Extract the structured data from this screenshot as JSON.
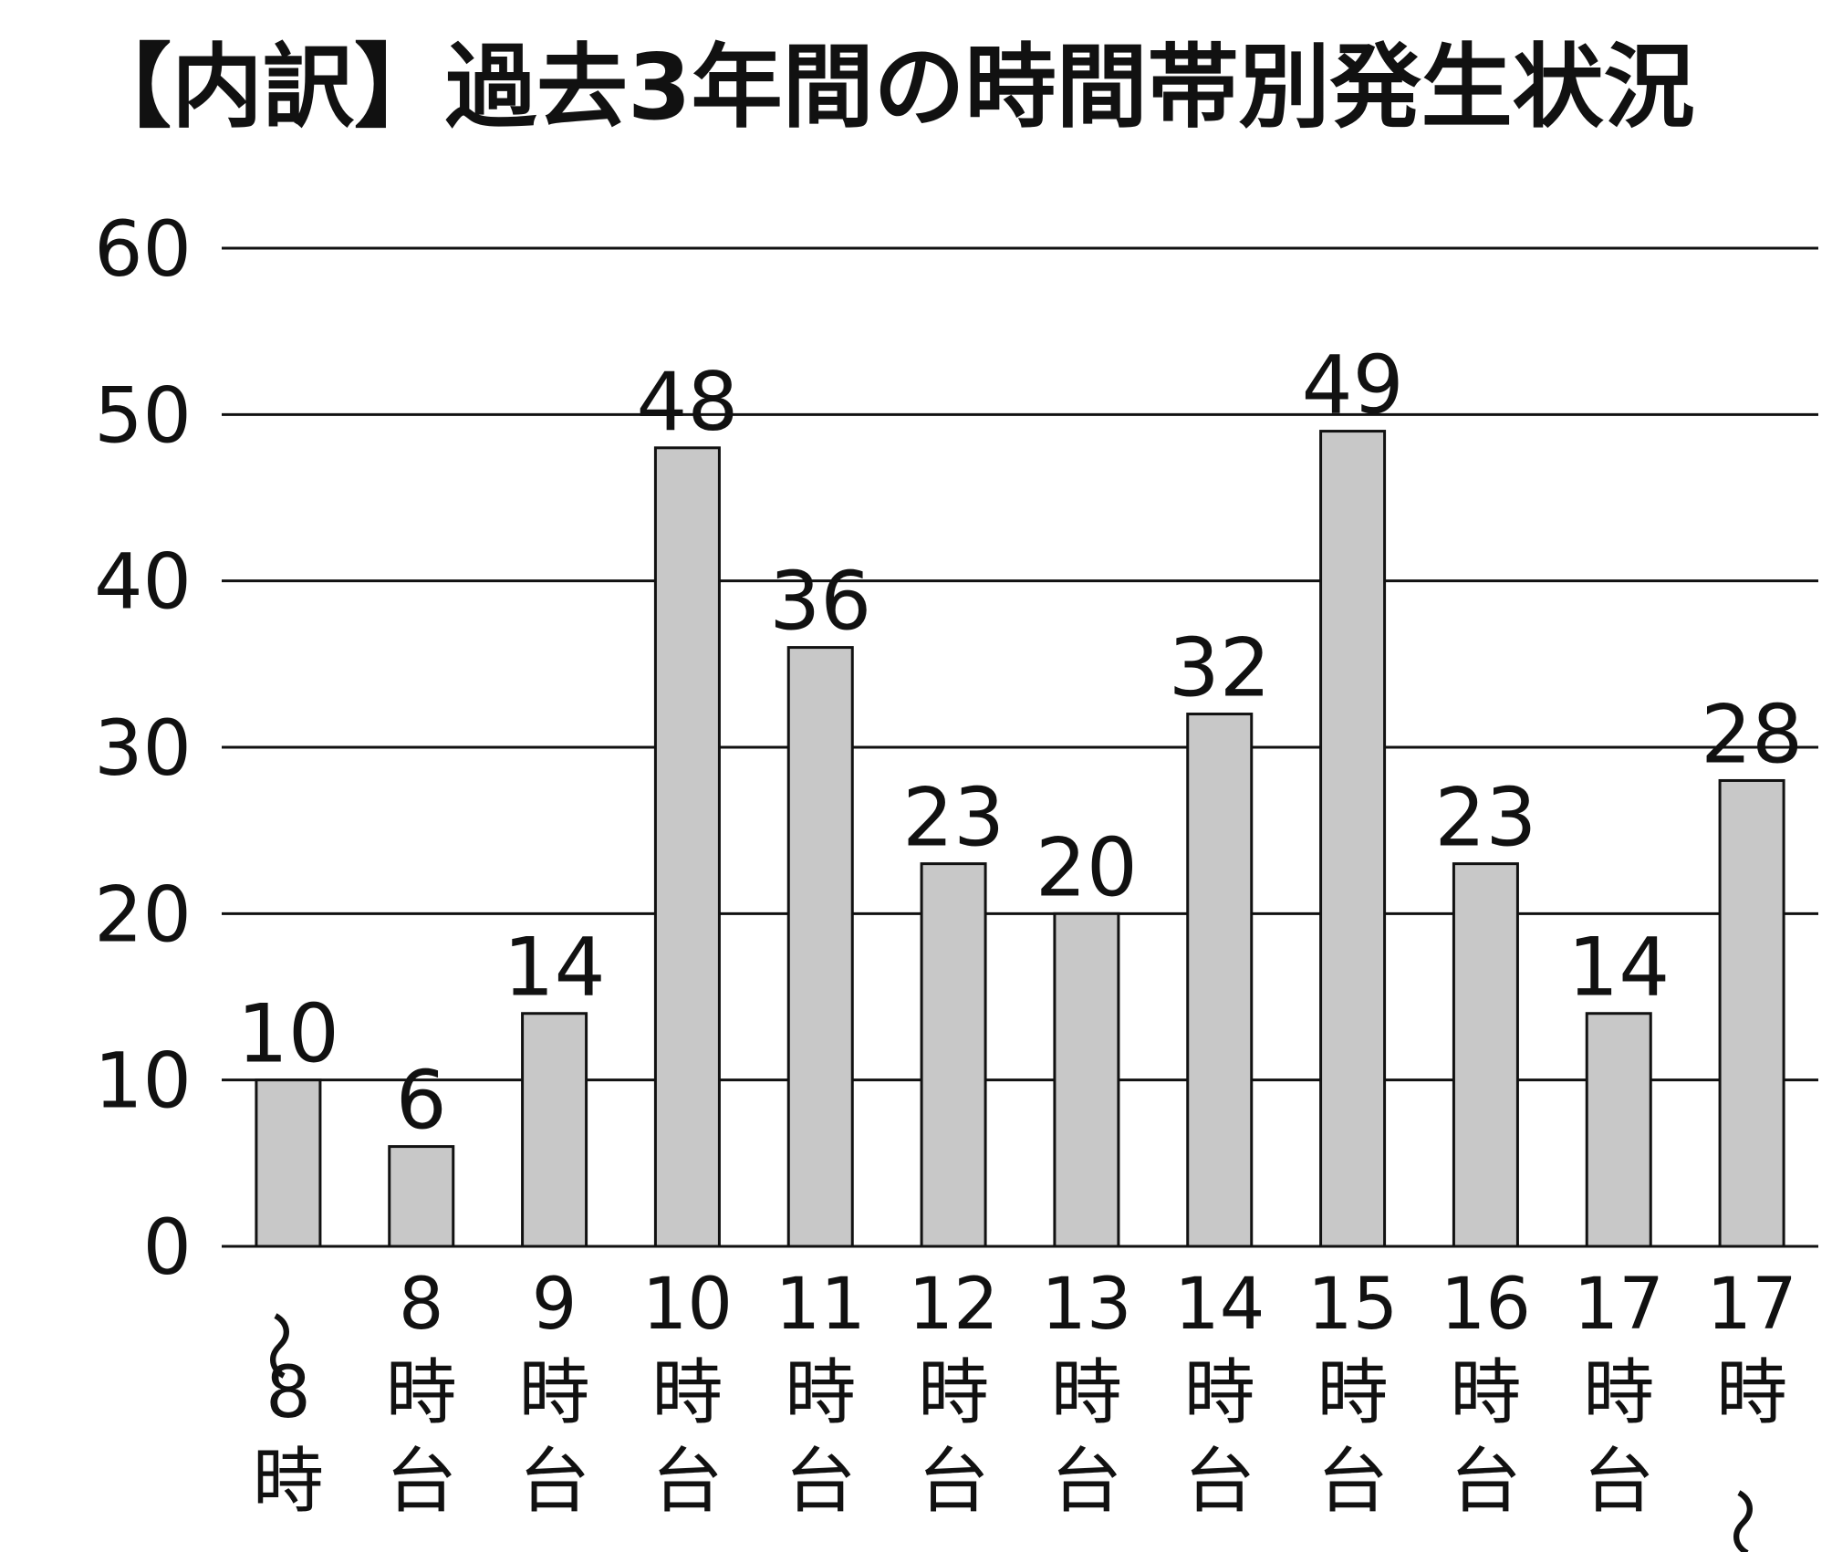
{
  "chart_data": {
    "type": "bar",
    "title": "【内訳】過去3年間の時間帯別発生状況",
    "categories": [
      "〜8時",
      "8時台",
      "9時台",
      "10時台",
      "11時台",
      "12時台",
      "13時台",
      "14時台",
      "15時台",
      "16時台",
      "17時台",
      "17時〜"
    ],
    "values": [
      10,
      6,
      14,
      48,
      36,
      23,
      20,
      32,
      49,
      23,
      14,
      28
    ],
    "color": "#c8c8c8",
    "ylim": [
      0,
      60
    ],
    "yticks": [
      0,
      10,
      20,
      30,
      40,
      50,
      60
    ],
    "grid": true
  }
}
